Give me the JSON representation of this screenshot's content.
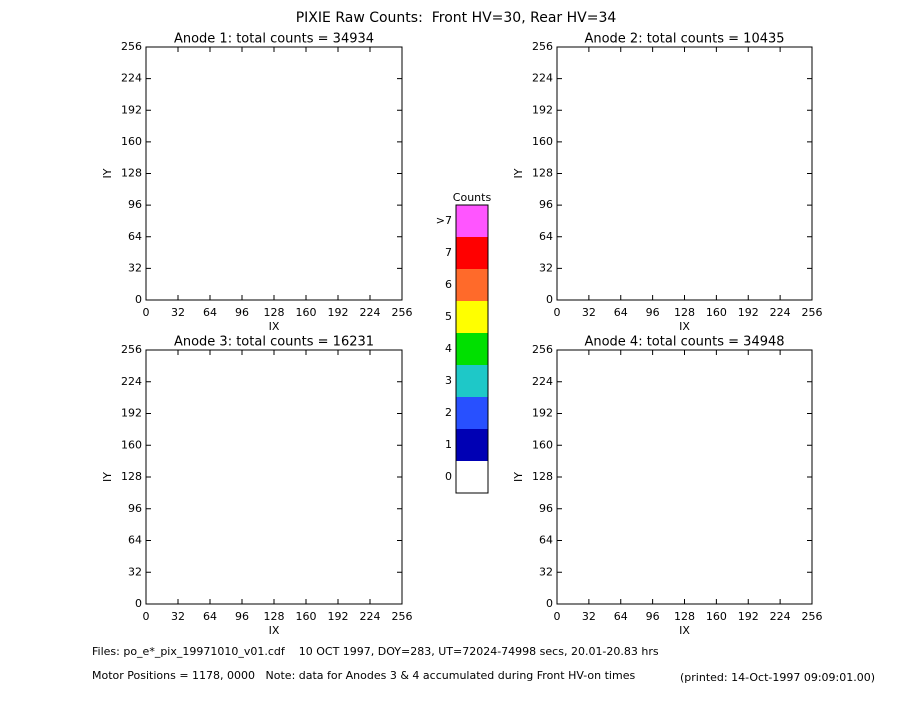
{
  "figure": {
    "title": "PIXIE Raw Counts:  Front HV=30, Rear HV=34"
  },
  "chart_data": [
    {
      "type": "image",
      "title": "Anode 1: total counts = 34934",
      "xlabel": "IX",
      "ylabel": "IY",
      "xlim": [
        0,
        256
      ],
      "xticks": [
        0,
        32,
        64,
        96,
        128,
        160,
        192,
        224,
        256
      ],
      "ylim": [
        0,
        256
      ],
      "yticks": [
        0,
        32,
        64,
        96,
        128,
        160,
        192,
        224,
        256
      ]
    },
    {
      "type": "image",
      "title": "Anode 2: total counts = 10435",
      "xlabel": "IX",
      "ylabel": "IY",
      "xlim": [
        0,
        256
      ],
      "xticks": [
        0,
        32,
        64,
        96,
        128,
        160,
        192,
        224,
        256
      ],
      "ylim": [
        0,
        256
      ],
      "yticks": [
        0,
        32,
        64,
        96,
        128,
        160,
        192,
        224,
        256
      ]
    },
    {
      "type": "image",
      "title": "Anode 3: total counts = 16231",
      "xlabel": "IX",
      "ylabel": "IY",
      "xlim": [
        0,
        256
      ],
      "xticks": [
        0,
        32,
        64,
        96,
        128,
        160,
        192,
        224,
        256
      ],
      "ylim": [
        0,
        256
      ],
      "yticks": [
        0,
        32,
        64,
        96,
        128,
        160,
        192,
        224,
        256
      ]
    },
    {
      "type": "image",
      "title": "Anode 4: total counts = 34948",
      "xlabel": "IX",
      "ylabel": "IY",
      "xlim": [
        0,
        256
      ],
      "xticks": [
        0,
        32,
        64,
        96,
        128,
        160,
        192,
        224,
        256
      ],
      "ylim": [
        0,
        256
      ],
      "yticks": [
        0,
        32,
        64,
        96,
        128,
        160,
        192,
        224,
        256
      ]
    }
  ],
  "colorbar": {
    "title": "Counts",
    "levels": [
      0,
      1,
      2,
      3,
      4,
      5,
      6,
      7,
      ">7"
    ],
    "colors": [
      "#ffffff",
      "#0000b4",
      "#2850ff",
      "#1ec8c8",
      "#00e000",
      "#ffff00",
      "#ff6a2a",
      "#ff0000",
      "#ff55ff"
    ]
  },
  "footer": {
    "files": "Files: po_e*_pix_19971010_v01.cdf    10 OCT 1997, DOY=283, UT=72024-74998 secs, 20.01-20.83 hrs",
    "motor": "Motor Positions = 1178, 0000   Note: data for Anodes 3 & 4 accumulated during Front HV-on times",
    "printed": "(printed: 14-Oct-1997 09:09:01.00)"
  }
}
